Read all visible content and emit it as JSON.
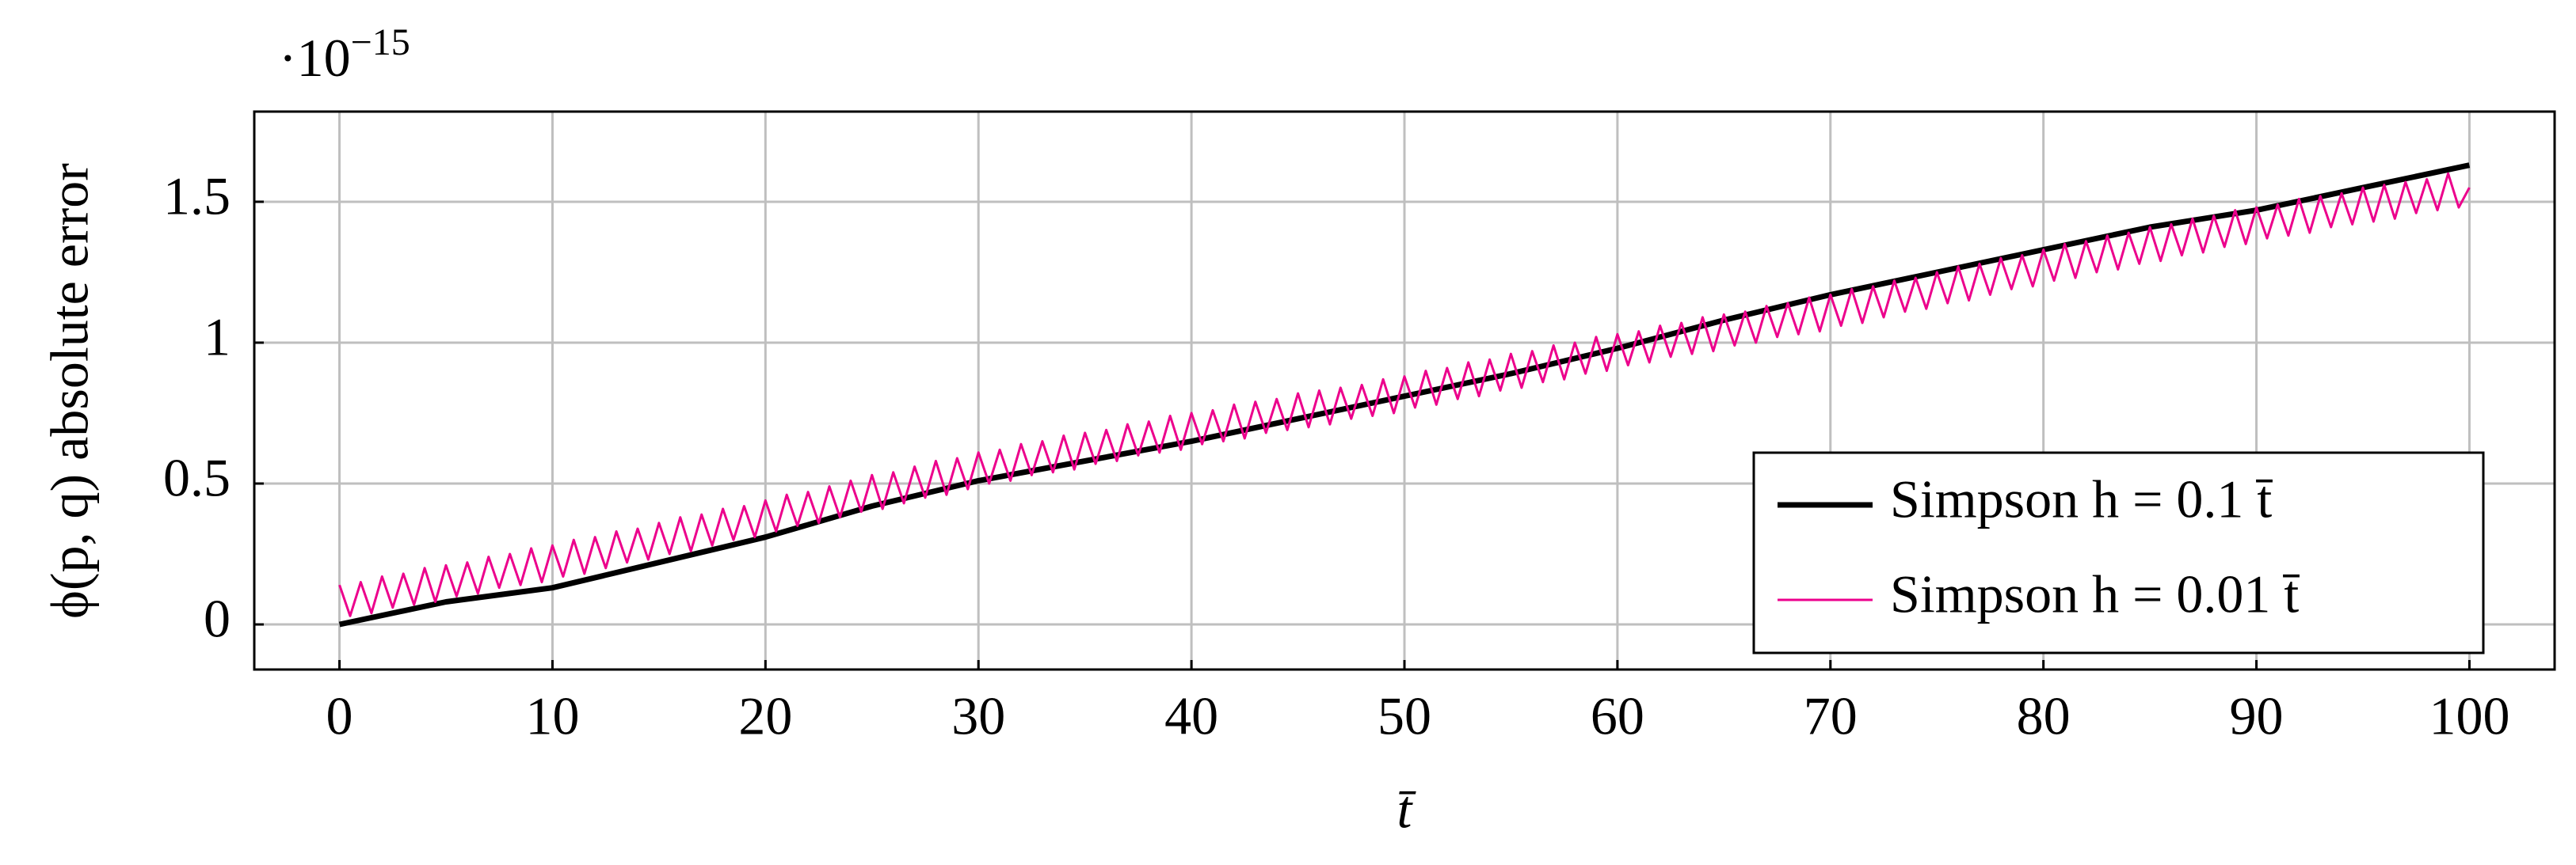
{
  "chart_data": {
    "type": "line",
    "y_multiplier": {
      "base": "·10",
      "exponent": "−15"
    },
    "x_label": "t̄",
    "y_label": "ϕ(p, q) absolute error",
    "xlim": [
      -4,
      104
    ],
    "ylim": [
      -0.16,
      1.82
    ],
    "xticks": [
      0,
      10,
      20,
      30,
      40,
      50,
      60,
      70,
      80,
      90,
      100
    ],
    "yticks": [
      0,
      0.5,
      1,
      1.5
    ],
    "grid": true,
    "legend": "lower right",
    "series": [
      {
        "name": "Simpson h = 0.1 t̄",
        "color": "#000000",
        "x": [
          0,
          5,
          10,
          15,
          20,
          25,
          30,
          35,
          40,
          45,
          50,
          55,
          60,
          65,
          70,
          75,
          80,
          85,
          90,
          95,
          100
        ],
        "values": [
          0,
          0.08,
          0.13,
          0.22,
          0.31,
          0.42,
          0.51,
          0.58,
          0.65,
          0.73,
          0.81,
          0.89,
          0.98,
          1.08,
          1.17,
          1.25,
          1.33,
          1.41,
          1.47,
          1.55,
          1.63
        ]
      },
      {
        "name": "Simpson h = 0.01 t̄",
        "color": "#ec008c",
        "x": [
          0,
          0.5,
          1,
          1.5,
          2,
          2.5,
          3,
          3.5,
          4,
          4.5,
          5,
          5.5,
          6,
          6.5,
          7,
          7.5,
          8,
          8.5,
          9,
          9.5,
          10,
          10.5,
          11,
          11.5,
          12,
          12.5,
          13,
          13.5,
          14,
          14.5,
          15,
          15.5,
          16,
          16.5,
          17,
          17.5,
          18,
          18.5,
          19,
          19.5,
          20,
          20.5,
          21,
          21.5,
          22,
          22.5,
          23,
          23.5,
          24,
          24.5,
          25,
          25.5,
          26,
          26.5,
          27,
          27.5,
          28,
          28.5,
          29,
          29.5,
          30,
          30.5,
          31,
          31.5,
          32,
          32.5,
          33,
          33.5,
          34,
          34.5,
          35,
          35.5,
          36,
          36.5,
          37,
          37.5,
          38,
          38.5,
          39,
          39.5,
          40,
          40.5,
          41,
          41.5,
          42,
          42.5,
          43,
          43.5,
          44,
          44.5,
          45,
          45.5,
          46,
          46.5,
          47,
          47.5,
          48,
          48.5,
          49,
          49.5,
          50,
          50.5,
          51,
          51.5,
          52,
          52.5,
          53,
          53.5,
          54,
          54.5,
          55,
          55.5,
          56,
          56.5,
          57,
          57.5,
          58,
          58.5,
          59,
          59.5,
          60,
          60.5,
          61,
          61.5,
          62,
          62.5,
          63,
          63.5,
          64,
          64.5,
          65,
          65.5,
          66,
          66.5,
          67,
          67.5,
          68,
          68.5,
          69,
          69.5,
          70,
          70.5,
          71,
          71.5,
          72,
          72.5,
          73,
          73.5,
          74,
          74.5,
          75,
          75.5,
          76,
          76.5,
          77,
          77.5,
          78,
          78.5,
          79,
          79.5,
          80,
          80.5,
          81,
          81.5,
          82,
          82.5,
          83,
          83.5,
          84,
          84.5,
          85,
          85.5,
          86,
          86.5,
          87,
          87.5,
          88,
          88.5,
          89,
          89.5,
          90,
          90.5,
          91,
          91.5,
          92,
          92.5,
          93,
          93.5,
          94,
          94.5,
          95,
          95.5,
          96,
          96.5,
          97,
          97.5,
          98,
          98.5,
          99,
          99.5,
          100
        ],
        "values": [
          0.14,
          0.03,
          0.15,
          0.04,
          0.17,
          0.06,
          0.18,
          0.07,
          0.2,
          0.08,
          0.21,
          0.1,
          0.22,
          0.11,
          0.24,
          0.13,
          0.25,
          0.14,
          0.27,
          0.15,
          0.28,
          0.17,
          0.3,
          0.18,
          0.31,
          0.2,
          0.33,
          0.22,
          0.34,
          0.23,
          0.36,
          0.25,
          0.38,
          0.26,
          0.39,
          0.28,
          0.41,
          0.3,
          0.42,
          0.31,
          0.44,
          0.33,
          0.46,
          0.35,
          0.47,
          0.36,
          0.49,
          0.38,
          0.51,
          0.4,
          0.53,
          0.41,
          0.54,
          0.43,
          0.56,
          0.45,
          0.58,
          0.46,
          0.59,
          0.48,
          0.61,
          0.5,
          0.62,
          0.51,
          0.64,
          0.53,
          0.65,
          0.54,
          0.67,
          0.55,
          0.68,
          0.57,
          0.69,
          0.58,
          0.71,
          0.6,
          0.72,
          0.61,
          0.74,
          0.62,
          0.75,
          0.64,
          0.76,
          0.65,
          0.78,
          0.66,
          0.79,
          0.68,
          0.8,
          0.69,
          0.82,
          0.7,
          0.83,
          0.71,
          0.84,
          0.73,
          0.85,
          0.74,
          0.87,
          0.75,
          0.88,
          0.77,
          0.9,
          0.78,
          0.91,
          0.8,
          0.93,
          0.81,
          0.94,
          0.83,
          0.96,
          0.84,
          0.97,
          0.86,
          0.99,
          0.87,
          1.0,
          0.89,
          1.02,
          0.9,
          1.03,
          0.92,
          1.04,
          0.93,
          1.06,
          0.95,
          1.07,
          0.96,
          1.09,
          0.97,
          1.1,
          0.99,
          1.11,
          1.0,
          1.13,
          1.02,
          1.14,
          1.03,
          1.16,
          1.04,
          1.17,
          1.06,
          1.19,
          1.07,
          1.2,
          1.09,
          1.22,
          1.11,
          1.23,
          1.12,
          1.25,
          1.14,
          1.27,
          1.15,
          1.28,
          1.17,
          1.3,
          1.19,
          1.31,
          1.2,
          1.33,
          1.22,
          1.35,
          1.23,
          1.36,
          1.25,
          1.38,
          1.26,
          1.39,
          1.28,
          1.41,
          1.29,
          1.42,
          1.31,
          1.44,
          1.32,
          1.45,
          1.34,
          1.47,
          1.35,
          1.48,
          1.37,
          1.49,
          1.38,
          1.51,
          1.39,
          1.52,
          1.41,
          1.53,
          1.42,
          1.55,
          1.43,
          1.56,
          1.44,
          1.57,
          1.46,
          1.58,
          1.47,
          1.6,
          1.48,
          1.55
        ]
      }
    ]
  }
}
